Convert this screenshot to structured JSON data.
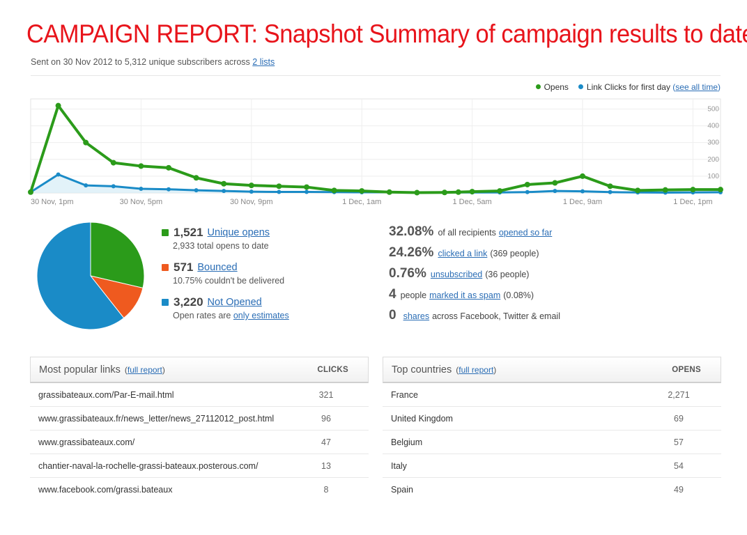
{
  "title": "CAMPAIGN REPORT: Snapshot Summary of campaign results to date",
  "sent": {
    "text": "Sent on 30 Nov 2012 to 5,312 unique subscribers across ",
    "link": "2 lists"
  },
  "legend": {
    "opens": "Opens",
    "clicks": "Link Clicks for first day",
    "see_all_open": "(",
    "see_all": "see all time",
    "see_all_close": ")"
  },
  "colors": {
    "opens": "#2b9b1a",
    "clicks": "#1a8bc7",
    "bounced": "#ef5a1f",
    "not_opened": "#1a8bc7",
    "title": "#e8141b"
  },
  "chart_data": {
    "type": "line",
    "x_tick_labels": [
      "30 Nov, 1pm",
      "30 Nov, 5pm",
      "30 Nov, 9pm",
      "1 Dec, 1am",
      "1 Dec, 5am",
      "1 Dec, 9am",
      "1 Dec, 1pm"
    ],
    "y_ticks": [
      100,
      200,
      300,
      400,
      500
    ],
    "ylim": [
      0,
      560
    ],
    "x_hours": [
      0,
      1,
      2,
      3,
      4,
      5,
      6,
      7,
      8,
      9,
      10,
      11,
      12,
      13,
      14,
      15,
      15.5,
      16,
      17,
      18,
      19,
      20,
      21,
      22,
      23,
      24,
      25
    ],
    "series": [
      {
        "name": "Opens",
        "color": "#2b9b1a",
        "values": [
          5,
          520,
          300,
          180,
          160,
          150,
          90,
          55,
          45,
          40,
          35,
          15,
          12,
          5,
          2,
          3,
          5,
          8,
          12,
          50,
          60,
          100,
          40,
          15,
          18,
          20,
          20
        ]
      },
      {
        "name": "Link Clicks for first day",
        "color": "#1a8bc7",
        "values": [
          5,
          110,
          45,
          40,
          25,
          22,
          16,
          12,
          8,
          6,
          6,
          5,
          4,
          4,
          3,
          3,
          3,
          3,
          3,
          5,
          12,
          10,
          5,
          3,
          2,
          3,
          4
        ]
      }
    ]
  },
  "pie": [
    {
      "label": "Unique opens",
      "value": 1521,
      "color": "#2b9b1a"
    },
    {
      "label": "Bounced",
      "value": 571,
      "color": "#ef5a1f"
    },
    {
      "label": "Not Opened",
      "value": 3220,
      "color": "#1a8bc7"
    }
  ],
  "stats_left": [
    {
      "num": "1,521",
      "link": "Unique opens",
      "sub": "2,933 total opens to date",
      "color": "#2b9b1a"
    },
    {
      "num": "571",
      "link": "Bounced",
      "sub": "10.75% couldn't be delivered",
      "color": "#ef5a1f"
    },
    {
      "num": "3,220",
      "link": "Not Opened",
      "sub_pre": "Open rates are ",
      "sub_link": "only estimates",
      "color": "#1a8bc7"
    }
  ],
  "stats_right": [
    {
      "big": "32.08%",
      "pre": "of all recipients",
      "link": "opened so far",
      "post": ""
    },
    {
      "big": "24.26%",
      "pre": "",
      "link": "clicked a link",
      "post": "(369 people)"
    },
    {
      "big": "0.76%",
      "pre": "",
      "link": "unsubscribed",
      "post": "(36 people)"
    },
    {
      "big": "4",
      "pre": "people",
      "link": "marked it as spam",
      "post": "(0.08%)"
    },
    {
      "big": "0",
      "pre": "",
      "link": "shares",
      "post": "across Facebook, Twitter & email"
    }
  ],
  "links_panel": {
    "title": "Most popular links",
    "report": "full report",
    "column": "CLICKS",
    "rows": [
      {
        "name": "grassibateaux.com/Par-E-mail.html",
        "value": "321"
      },
      {
        "name": "www.grassibateaux.fr/news_letter/news_27112012_post.html",
        "value": "96"
      },
      {
        "name": "www.grassibateaux.com/",
        "value": "47"
      },
      {
        "name": "chantier-naval-la-rochelle-grassi-bateaux.posterous.com/",
        "value": "13"
      },
      {
        "name": "www.facebook.com/grassi.bateaux",
        "value": "8"
      }
    ]
  },
  "countries_panel": {
    "title": "Top countries",
    "report": "full report",
    "column": "OPENS",
    "rows": [
      {
        "name": "France",
        "value": "2,271"
      },
      {
        "name": "United Kingdom",
        "value": "69"
      },
      {
        "name": "Belgium",
        "value": "57"
      },
      {
        "name": "Italy",
        "value": "54"
      },
      {
        "name": "Spain",
        "value": "49"
      }
    ]
  }
}
